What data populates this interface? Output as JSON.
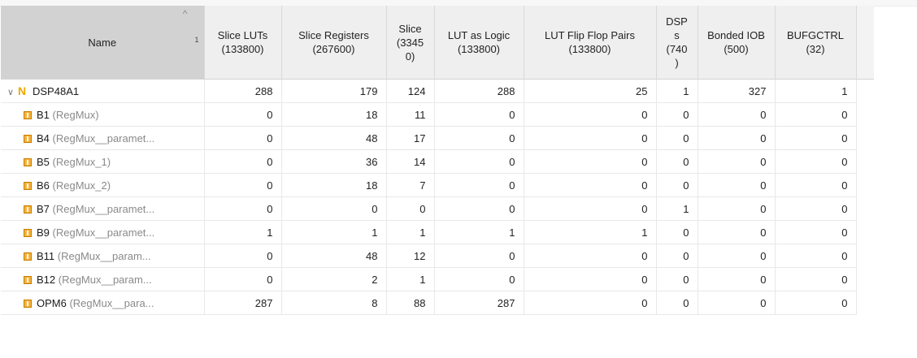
{
  "columns": [
    {
      "label": "Name",
      "sort_index": "1"
    },
    {
      "label": "Slice LUTs (133800)"
    },
    {
      "label": "Slice Registers (267600)"
    },
    {
      "label": "Slice (3345 0)"
    },
    {
      "label": "LUT as Logic (133800)"
    },
    {
      "label": "LUT Flip Flop Pairs (133800)"
    },
    {
      "label": "DSP s (740 )"
    },
    {
      "label": "Bonded IOB (500)"
    },
    {
      "label": "BUFGCTRL (32)"
    }
  ],
  "rows": [
    {
      "instance": "DSP48A1",
      "module": "",
      "values": [
        "288",
        "179",
        "124",
        "288",
        "25",
        "1",
        "327",
        "1"
      ]
    },
    {
      "instance": "B1",
      "module": " (RegMux)",
      "values": [
        "0",
        "18",
        "11",
        "0",
        "0",
        "0",
        "0",
        "0"
      ]
    },
    {
      "instance": "B4",
      "module": " (RegMux__paramet...",
      "values": [
        "0",
        "48",
        "17",
        "0",
        "0",
        "0",
        "0",
        "0"
      ]
    },
    {
      "instance": "B5",
      "module": " (RegMux_1)",
      "values": [
        "0",
        "36",
        "14",
        "0",
        "0",
        "0",
        "0",
        "0"
      ]
    },
    {
      "instance": "B6",
      "module": " (RegMux_2)",
      "values": [
        "0",
        "18",
        "7",
        "0",
        "0",
        "0",
        "0",
        "0"
      ]
    },
    {
      "instance": "B7",
      "module": " (RegMux__paramet...",
      "values": [
        "0",
        "0",
        "0",
        "0",
        "0",
        "1",
        "0",
        "0"
      ]
    },
    {
      "instance": "B9",
      "module": " (RegMux__paramet...",
      "values": [
        "1",
        "1",
        "1",
        "1",
        "1",
        "0",
        "0",
        "0"
      ]
    },
    {
      "instance": "B11",
      "module": " (RegMux__param...",
      "values": [
        "0",
        "48",
        "12",
        "0",
        "0",
        "0",
        "0",
        "0"
      ]
    },
    {
      "instance": "B12",
      "module": " (RegMux__param...",
      "values": [
        "0",
        "2",
        "1",
        "0",
        "0",
        "0",
        "0",
        "0"
      ]
    },
    {
      "instance": "OPM6",
      "module": " (RegMux__para...",
      "values": [
        "287",
        "8",
        "88",
        "287",
        "0",
        "0",
        "0",
        "0"
      ]
    }
  ],
  "icons": {
    "root": "netlist-n-icon",
    "child": "instance-icon",
    "expand": "chevron-down-icon",
    "sort": "sort-ascending-icon"
  },
  "colors": {
    "header_bg": "#efefef",
    "sorted_header_bg": "#d2d2d2",
    "icon_orange": "#f0a800"
  }
}
